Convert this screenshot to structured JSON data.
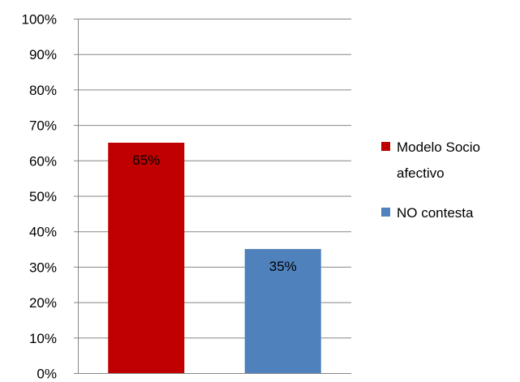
{
  "chart_data": {
    "type": "bar",
    "title": "",
    "xlabel": "",
    "ylabel": "",
    "ylim": [
      0,
      100
    ],
    "y_ticks": [
      0,
      10,
      20,
      30,
      40,
      50,
      60,
      70,
      80,
      90,
      100
    ],
    "y_tick_format": "percent",
    "grid": true,
    "legend_position": "right",
    "series": [
      {
        "name": "Modelo Socio afectivo",
        "legend_lines": [
          "Modelo Socio",
          "afectivo"
        ],
        "value": 65,
        "label": "65%",
        "color": "#C00000"
      },
      {
        "name": "NO contesta",
        "legend_lines": [
          "NO contesta"
        ],
        "value": 35,
        "label": "35%",
        "color": "#4F81BD"
      }
    ]
  }
}
